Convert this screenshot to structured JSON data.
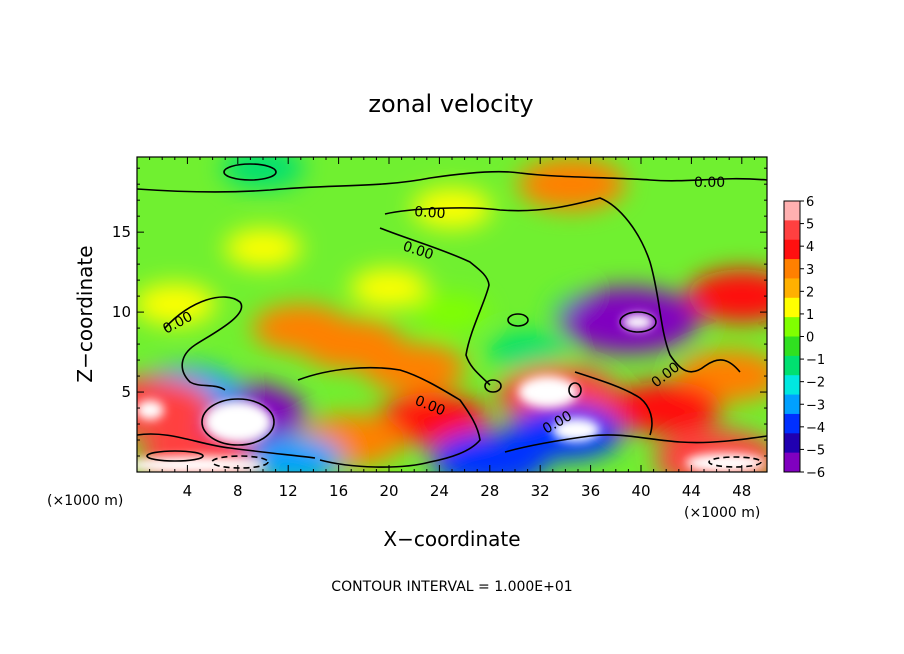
{
  "chart_data": {
    "type": "heatmap",
    "title": "zonal velocity",
    "xlabel": "X−coordinate",
    "ylabel": "Z−coordinate",
    "x_unit_left": "(×1000 m)",
    "x_unit_right": "(×1000 m)",
    "footer": "CONTOUR INTERVAL = 1.000E+01",
    "xlim": [
      0,
      50
    ],
    "ylim": [
      0,
      19.7
    ],
    "x_ticks": [
      "4",
      "8",
      "12",
      "16",
      "20",
      "24",
      "28",
      "32",
      "36",
      "40",
      "44",
      "48"
    ],
    "y_ticks": [
      "5",
      "10",
      "15"
    ],
    "colorbar": {
      "ticks": [
        "6",
        "5",
        "4",
        "3",
        "2",
        "1",
        "0",
        "−1",
        "−2",
        "−3",
        "−4",
        "−5",
        "−6"
      ],
      "range": [
        -6,
        6
      ],
      "colors": [
        "#ffb0b0",
        "#ff4040",
        "#ff1010",
        "#ff8000",
        "#ffb000",
        "#ffff00",
        "#80ff00",
        "#30e020",
        "#00e070",
        "#00e8e0",
        "#00a0ff",
        "#0030ff",
        "#2000b0",
        "#8000c0"
      ]
    },
    "contour_labels": [
      "0.00",
      "0.00",
      "0.00",
      "0.00",
      "0.00",
      "0.00",
      "0.00"
    ],
    "field_features": [
      {
        "x": 25,
        "z": 10,
        "u": 0.8
      },
      {
        "x": 20,
        "z": 11.5,
        "u": 1.3
      },
      {
        "x": 25,
        "z": 16.5,
        "u": 1.4
      },
      {
        "x": 10,
        "z": 14,
        "u": 1.2
      },
      {
        "x": 13,
        "z": 9,
        "u": 2.6
      },
      {
        "x": 17,
        "z": 8,
        "u": 3.2
      },
      {
        "x": 22,
        "z": 6.5,
        "u": 3.0
      },
      {
        "x": 3,
        "z": 10.5,
        "u": 1.6
      },
      {
        "x": 48,
        "z": 11,
        "u": 3.6
      },
      {
        "x": 47,
        "z": 6,
        "u": 3.3
      },
      {
        "x": 34.5,
        "z": 18,
        "u": 3.4
      },
      {
        "x": 10,
        "z": 19,
        "u": -1.6
      },
      {
        "x": 36,
        "z": 10,
        "u": -1.6
      },
      {
        "x": 39,
        "z": 9.5,
        "u": -5.8
      },
      {
        "x": 31,
        "z": 7.5,
        "u": -1.4
      },
      {
        "x": 8,
        "z": 3.6,
        "u": -5.5
      },
      {
        "x": 4,
        "z": 5,
        "u": -3.4
      },
      {
        "x": 33.5,
        "z": 4.8,
        "u": 4.6
      },
      {
        "x": 23.5,
        "z": 3.3,
        "u": 3.6
      },
      {
        "x": 34,
        "z": 2.5,
        "u": -4.0
      },
      {
        "x": 17,
        "z": 2.0,
        "u": 3.3
      },
      {
        "x": 5,
        "z": 0.8,
        "u": 4.5
      },
      {
        "x": 46,
        "z": 0.8,
        "u": 4.6
      },
      {
        "x": 28,
        "z": 0.8,
        "u": -4.2
      },
      {
        "x": 42,
        "z": 4,
        "u": 3.6
      },
      {
        "x": 12.5,
        "z": 0.8,
        "u": -2.6
      },
      {
        "x": 1,
        "z": 4,
        "u": 5.0
      }
    ]
  }
}
